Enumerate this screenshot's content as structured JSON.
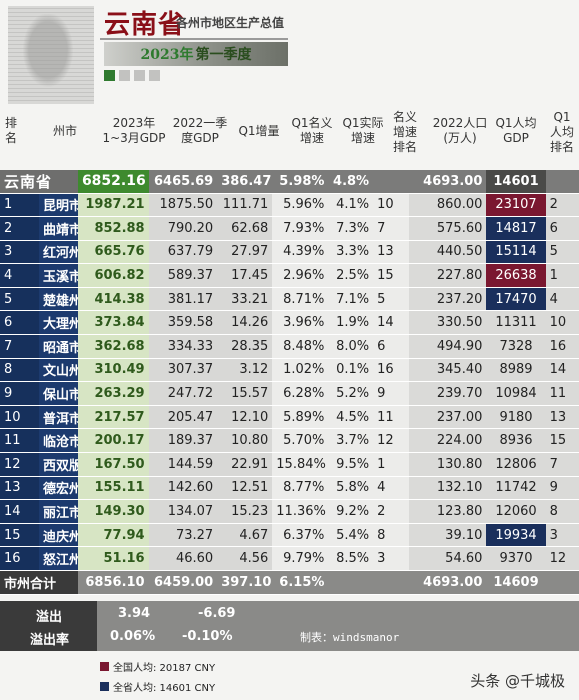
{
  "header": {
    "title": "云南省",
    "subtitle": "各州市地区生产总值",
    "year": "2023年",
    "quarter": "第一季度"
  },
  "columns": {
    "rank": "排名",
    "city": "州市",
    "gdp": "2023年 1~3月GDP",
    "prev": "2022一季度GDP",
    "inc": "Q1增量",
    "nominal": "Q1名义增速",
    "real": "Q1实际增速",
    "nominal_rank": "名义增速排名",
    "pop": "2022人口(万人)",
    "per_capita": "Q1人均GDP",
    "per_capita_rank": "Q1人均排名"
  },
  "province": {
    "city": "云南省",
    "gdp": "6852.16",
    "prev": "6465.69",
    "inc": "386.47",
    "nominal": "5.98%",
    "real": "4.8%",
    "nominal_rank": "",
    "pop": "4693.00",
    "per_capita": "14601",
    "per_capita_rank": ""
  },
  "rows": [
    {
      "rank": "1",
      "city": "昆明市",
      "gdp": "1987.21",
      "prev": "1875.50",
      "inc": "111.71",
      "nominal": "5.96%",
      "real": "4.1%",
      "nominal_rank": "10",
      "pop": "860.00",
      "per_capita": "23107",
      "per_capita_rank": "2",
      "tone": "high"
    },
    {
      "rank": "2",
      "city": "曲靖市",
      "gdp": "852.88",
      "prev": "790.20",
      "inc": "62.68",
      "nominal": "7.93%",
      "real": "7.3%",
      "nominal_rank": "7",
      "pop": "575.60",
      "per_capita": "14817",
      "per_capita_rank": "6",
      "tone": "mid"
    },
    {
      "rank": "3",
      "city": "红河州",
      "gdp": "665.76",
      "prev": "637.79",
      "inc": "27.97",
      "nominal": "4.39%",
      "real": "3.3%",
      "nominal_rank": "13",
      "pop": "440.50",
      "per_capita": "15114",
      "per_capita_rank": "5",
      "tone": "mid"
    },
    {
      "rank": "4",
      "city": "玉溪市",
      "gdp": "606.82",
      "prev": "589.37",
      "inc": "17.45",
      "nominal": "2.96%",
      "real": "2.5%",
      "nominal_rank": "15",
      "pop": "227.80",
      "per_capita": "26638",
      "per_capita_rank": "1",
      "tone": "high"
    },
    {
      "rank": "5",
      "city": "楚雄州",
      "gdp": "414.38",
      "prev": "381.17",
      "inc": "33.21",
      "nominal": "8.71%",
      "real": "7.1%",
      "nominal_rank": "5",
      "pop": "237.20",
      "per_capita": "17470",
      "per_capita_rank": "4",
      "tone": "mid"
    },
    {
      "rank": "6",
      "city": "大理州",
      "gdp": "373.84",
      "prev": "359.58",
      "inc": "14.26",
      "nominal": "3.96%",
      "real": "1.9%",
      "nominal_rank": "14",
      "pop": "330.50",
      "per_capita": "11311",
      "per_capita_rank": "10",
      "tone": ""
    },
    {
      "rank": "7",
      "city": "昭通市",
      "gdp": "362.68",
      "prev": "334.33",
      "inc": "28.35",
      "nominal": "8.48%",
      "real": "8.0%",
      "nominal_rank": "6",
      "pop": "494.90",
      "per_capita": "7328",
      "per_capita_rank": "16",
      "tone": ""
    },
    {
      "rank": "8",
      "city": "文山州",
      "gdp": "310.49",
      "prev": "307.37",
      "inc": "3.12",
      "nominal": "1.02%",
      "real": "0.1%",
      "nominal_rank": "16",
      "pop": "345.40",
      "per_capita": "8989",
      "per_capita_rank": "14",
      "tone": ""
    },
    {
      "rank": "9",
      "city": "保山市",
      "gdp": "263.29",
      "prev": "247.72",
      "inc": "15.57",
      "nominal": "6.28%",
      "real": "5.2%",
      "nominal_rank": "9",
      "pop": "239.70",
      "per_capita": "10984",
      "per_capita_rank": "11",
      "tone": ""
    },
    {
      "rank": "10",
      "city": "普洱市",
      "gdp": "217.57",
      "prev": "205.47",
      "inc": "12.10",
      "nominal": "5.89%",
      "real": "4.5%",
      "nominal_rank": "11",
      "pop": "237.00",
      "per_capita": "9180",
      "per_capita_rank": "13",
      "tone": ""
    },
    {
      "rank": "11",
      "city": "临沧市",
      "gdp": "200.17",
      "prev": "189.37",
      "inc": "10.80",
      "nominal": "5.70%",
      "real": "3.7%",
      "nominal_rank": "12",
      "pop": "224.00",
      "per_capita": "8936",
      "per_capita_rank": "15",
      "tone": ""
    },
    {
      "rank": "12",
      "city": "西双版纳州",
      "gdp": "167.50",
      "prev": "144.59",
      "inc": "22.91",
      "nominal": "15.84%",
      "real": "9.5%",
      "nominal_rank": "1",
      "pop": "130.80",
      "per_capita": "12806",
      "per_capita_rank": "7",
      "tone": ""
    },
    {
      "rank": "13",
      "city": "德宏州",
      "gdp": "155.11",
      "prev": "142.60",
      "inc": "12.51",
      "nominal": "8.77%",
      "real": "5.8%",
      "nominal_rank": "4",
      "pop": "132.10",
      "per_capita": "11742",
      "per_capita_rank": "9",
      "tone": ""
    },
    {
      "rank": "14",
      "city": "丽江市",
      "gdp": "149.30",
      "prev": "134.07",
      "inc": "15.23",
      "nominal": "11.36%",
      "real": "9.2%",
      "nominal_rank": "2",
      "pop": "123.80",
      "per_capita": "12060",
      "per_capita_rank": "8",
      "tone": ""
    },
    {
      "rank": "15",
      "city": "迪庆州",
      "gdp": "77.94",
      "prev": "73.27",
      "inc": "4.67",
      "nominal": "6.37%",
      "real": "5.4%",
      "nominal_rank": "8",
      "pop": "39.10",
      "per_capita": "19934",
      "per_capita_rank": "3",
      "tone": "mid"
    },
    {
      "rank": "16",
      "city": "怒江州",
      "gdp": "51.16",
      "prev": "46.60",
      "inc": "4.56",
      "nominal": "9.79%",
      "real": "8.5%",
      "nominal_rank": "3",
      "pop": "54.60",
      "per_capita": "9370",
      "per_capita_rank": "12",
      "tone": ""
    }
  ],
  "total": {
    "city": "市州合计",
    "gdp": "6856.10",
    "prev": "6459.00",
    "inc": "397.10",
    "nominal": "6.15%",
    "pop": "4693.00",
    "per_capita": "14609"
  },
  "overflow": {
    "label": "溢出",
    "gdp": "3.94",
    "prev": "-6.69",
    "rate_label": "溢出率",
    "rate_gdp": "0.06%",
    "rate_prev": "-0.10%",
    "credit": "制表：windsmanor"
  },
  "legend": {
    "national": "全国人均: 20187 CNY",
    "provincial": "全省人均: 14601 CNY",
    "national_color": "#7a1730",
    "provincial_color": "#1a2f5c"
  },
  "watermark": "头条 @千城极"
}
